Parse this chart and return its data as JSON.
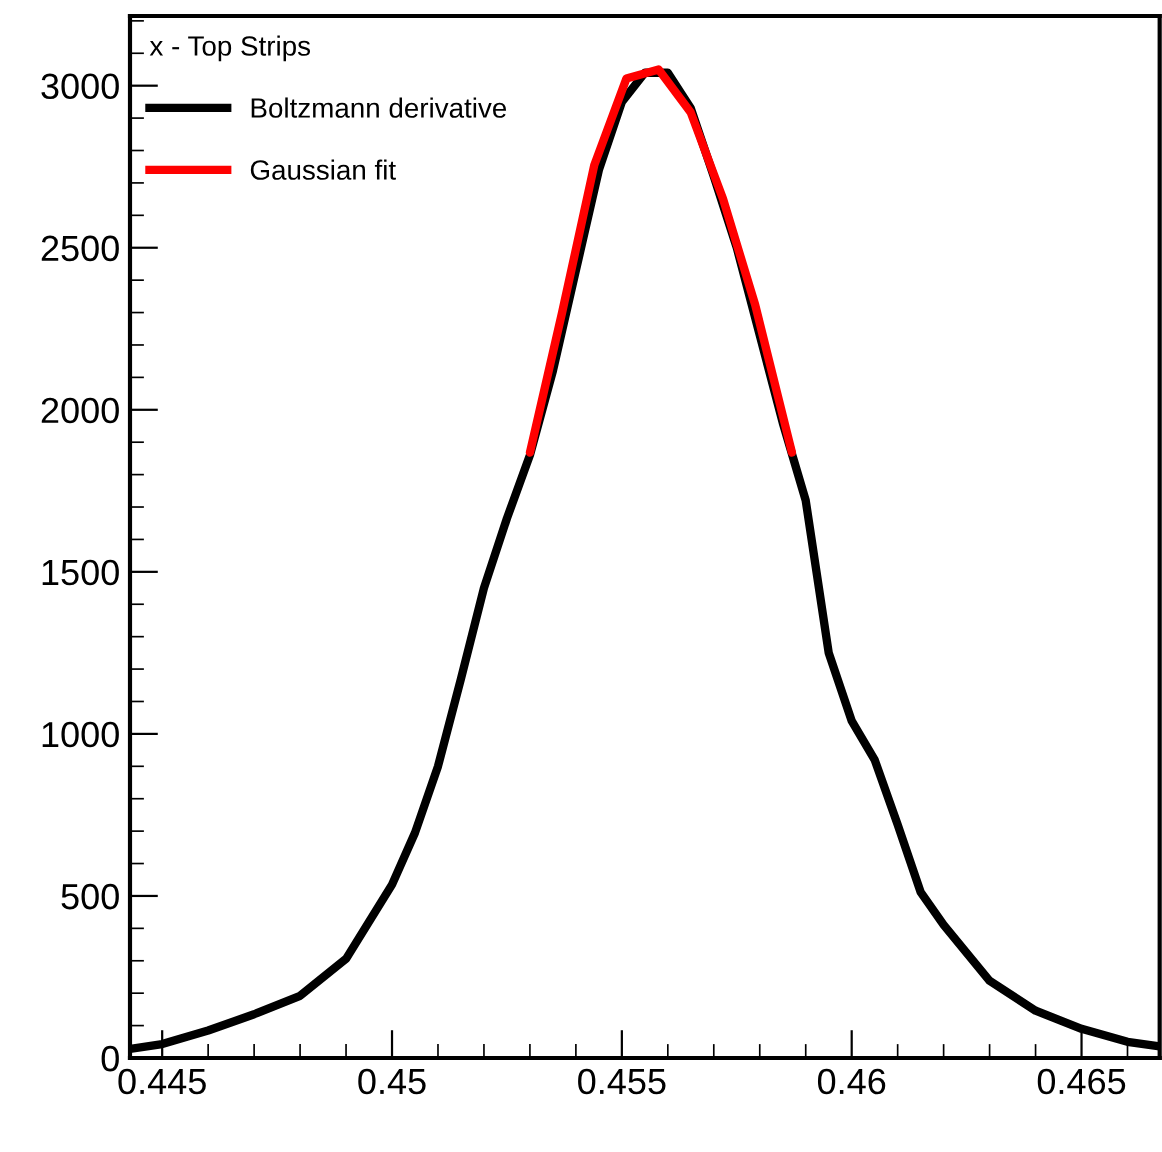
{
  "chart_data": {
    "type": "line",
    "legend_title": "x - Top Strips",
    "legend": "top left",
    "grid": false,
    "series": [
      {
        "name": "Boltzmann derivative",
        "color": "#000000",
        "x": [
          0.4443,
          0.445,
          0.446,
          0.447,
          0.448,
          0.449,
          0.45,
          0.4505,
          0.451,
          0.4515,
          0.452,
          0.4525,
          0.453,
          0.4535,
          0.454,
          0.4545,
          0.455,
          0.4555,
          0.456,
          0.4565,
          0.457,
          0.4575,
          0.458,
          0.4585,
          0.459,
          0.4595,
          0.46,
          0.4605,
          0.461,
          0.4615,
          0.462,
          0.463,
          0.464,
          0.465,
          0.466,
          0.4667
        ],
        "values": [
          28,
          43,
          85,
          135,
          192,
          306,
          535,
          695,
          900,
          1170,
          1450,
          1665,
          1860,
          2120,
          2430,
          2740,
          2950,
          3040,
          3040,
          2930,
          2720,
          2500,
          2230,
          1960,
          1720,
          1250,
          1040,
          920,
          720,
          512,
          411,
          238,
          146,
          90,
          50,
          36
        ]
      },
      {
        "name": "Gaussian fit",
        "color": "#ff0000",
        "x": [
          0.453,
          0.4537,
          0.4544,
          0.4551,
          0.4558,
          0.4565,
          0.4572,
          0.4579,
          0.4587
        ],
        "values": [
          1868,
          2300,
          2755,
          3022,
          3050,
          2917,
          2651,
          2324,
          1868
        ]
      }
    ],
    "xlim": [
      0.4443,
      0.4667
    ],
    "ylim": [
      0,
      3215
    ],
    "xticks": [
      0.445,
      0.45,
      0.455,
      0.46,
      0.465
    ],
    "yticks": [
      0,
      500,
      1000,
      1500,
      2000,
      2500,
      3000
    ]
  }
}
